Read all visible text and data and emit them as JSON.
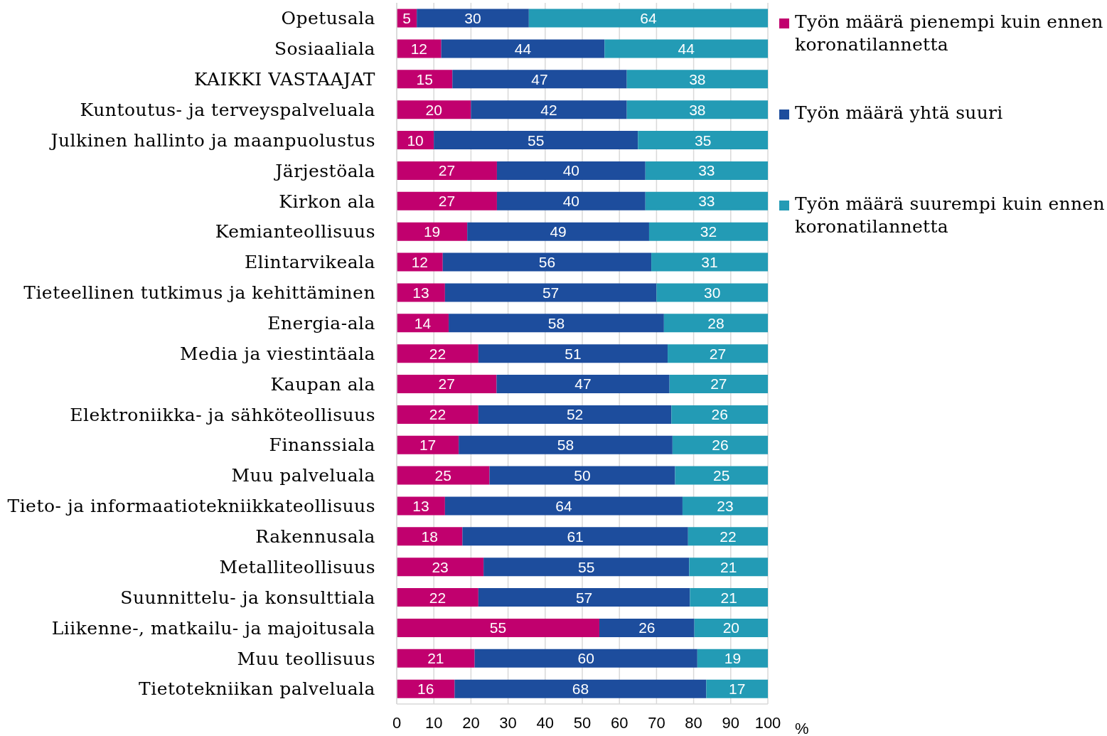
{
  "chart_data": {
    "type": "bar",
    "orientation": "horizontal",
    "stacked": true,
    "categories": [
      "Opetusala",
      "Sosiaaliala",
      "KAIKKI VASTAAJAT",
      "Kuntoutus- ja terveyspalveluala",
      "Julkinen hallinto ja maanpuolustus",
      "Järjestöala",
      "Kirkon ala",
      "Kemianteollisuus",
      "Elintarvikeala",
      "Tieteellinen tutkimus ja kehittäminen",
      "Energia-ala",
      "Media ja viestintäala",
      "Kaupan ala",
      "Elektroniikka- ja sähköteollisuus",
      "Finanssiala",
      "Muu palveluala",
      "Tieto- ja informaatiotekniikkateollisuus",
      "Rakennusala",
      "Metalliteollisuus",
      "Suunnittelu- ja konsulttiala",
      "Liikenne-, matkailu- ja majoitusala",
      "Muu teollisuus",
      "Tietotekniikan palveluala"
    ],
    "series": [
      {
        "name": "Työn määrä pienempi kuin ennen koronatilannetta",
        "color": "#c1006e",
        "values": [
          5.4,
          12,
          15,
          20,
          10,
          27,
          27,
          19,
          12.4,
          13,
          14,
          22,
          26.9,
          22,
          16.7,
          25,
          13,
          17.7,
          23.4,
          22,
          54.6,
          21,
          15.6
        ],
        "value_labels": [
          "5",
          "12",
          "15",
          "20",
          "10",
          "27",
          "27",
          "19",
          "12",
          "13",
          "14",
          "22",
          "27",
          "22",
          "17",
          "25",
          "13",
          "18",
          "23",
          "22",
          "55",
          "21",
          "16"
        ]
      },
      {
        "name": "Työn määrä yhtä suuri",
        "color": "#1d4d9d",
        "values": [
          30.2,
          44,
          47,
          42,
          55,
          40,
          40,
          49,
          56.2,
          57,
          58,
          51,
          46.6,
          52,
          57.6,
          50,
          64,
          60.8,
          55.4,
          57,
          25.6,
          60,
          67.8
        ],
        "value_labels": [
          "30",
          "44",
          "47",
          "42",
          "55",
          "40",
          "40",
          "49",
          "56",
          "57",
          "58",
          "51",
          "47",
          "52",
          "58",
          "50",
          "64",
          "61",
          "55",
          "57",
          "26",
          "60",
          "68"
        ]
      },
      {
        "name": "Työn määrä suurempi kuin ennen koronatilannetta",
        "color": "#239bb5",
        "values": [
          64.4,
          44,
          38,
          38,
          35,
          33,
          33,
          32,
          31.4,
          30,
          28,
          27,
          26.5,
          26,
          25.7,
          25,
          23,
          21.5,
          21.2,
          21,
          19.8,
          19,
          16.6
        ],
        "value_labels": [
          "64",
          "44",
          "38",
          "38",
          "35",
          "33",
          "33",
          "32",
          "31",
          "30",
          "28",
          "27",
          "27",
          "26",
          "26",
          "25",
          "23",
          "22",
          "21",
          "21",
          "20",
          "19",
          "17"
        ]
      }
    ],
    "xlim": [
      0,
      100
    ],
    "xticks": [
      0,
      10,
      20,
      30,
      40,
      50,
      60,
      70,
      80,
      90,
      100
    ],
    "xlabel": "%",
    "grid": "x",
    "legend": "top right"
  }
}
